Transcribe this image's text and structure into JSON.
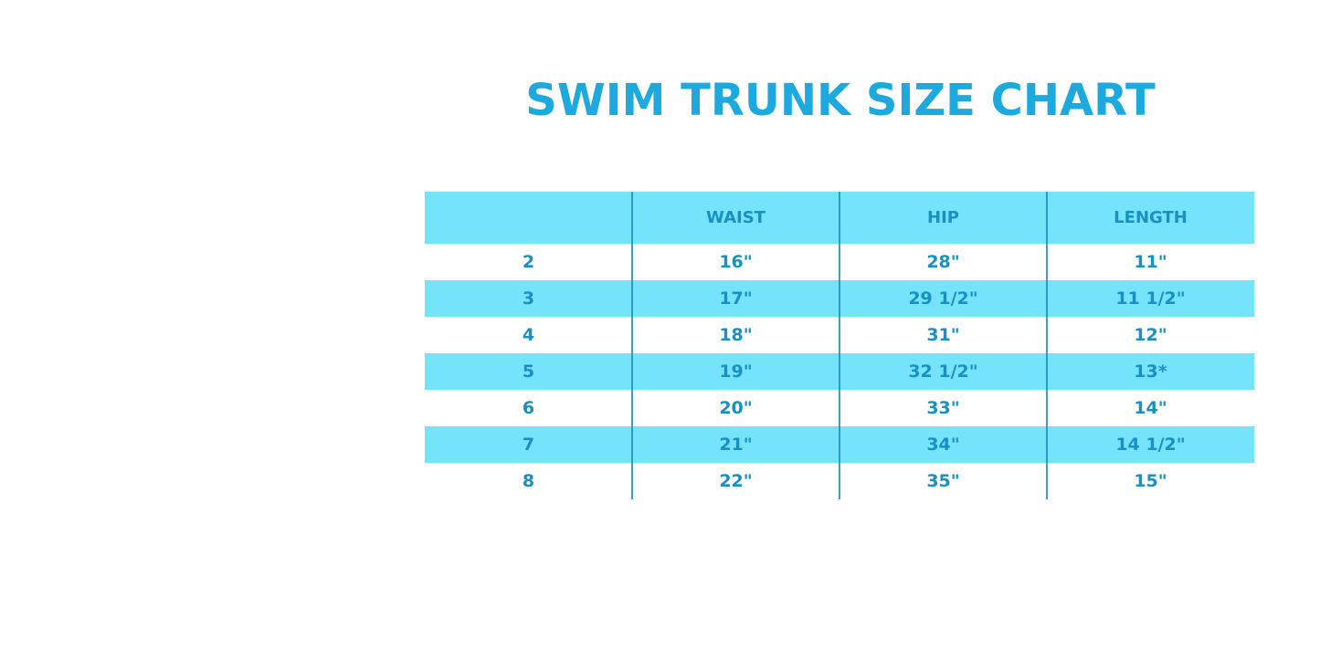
{
  "title": "SWIM TRUNK SIZE CHART",
  "colors": {
    "accent": "#1ea9de",
    "row_fill": "#76e3fd",
    "text": "#1a8fc2"
  },
  "table": {
    "headers": [
      "",
      "WAIST",
      "HIP",
      "LENGTH"
    ],
    "rows": [
      [
        "2",
        "16\"",
        "28\"",
        "11\""
      ],
      [
        "3",
        "17\"",
        "29 1/2\"",
        "11 1/2\""
      ],
      [
        "4",
        "18\"",
        "31\"",
        "12\""
      ],
      [
        "5",
        "19\"",
        "32 1/2\"",
        "13*"
      ],
      [
        "6",
        "20\"",
        "33\"",
        "14\""
      ],
      [
        "7",
        "21\"",
        "34\"",
        "14 1/2\""
      ],
      [
        "8",
        "22\"",
        "35\"",
        "15\""
      ]
    ]
  }
}
